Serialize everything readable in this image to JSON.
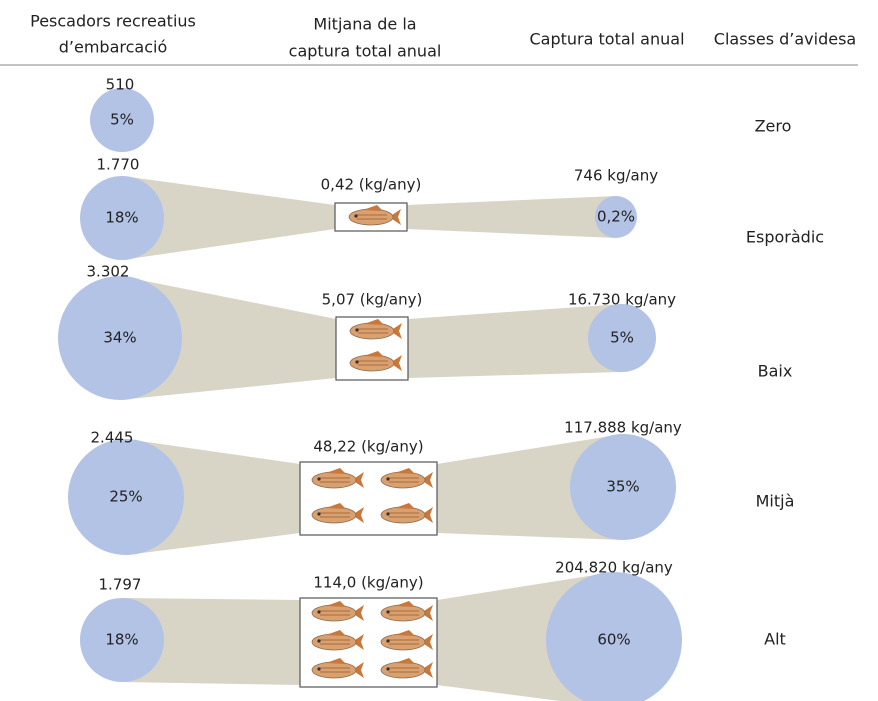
{
  "headers": [
    [
      "Pescadors recreatius",
      "d’embarcació"
    ],
    [
      "Mitjana de la",
      "captura total anual"
    ],
    [
      "Captura total anual"
    ],
    [
      "Classes d’avidesa"
    ]
  ],
  "rows": [
    {
      "count": "510",
      "share": "5%",
      "class": "Zero"
    },
    {
      "count": "1.770",
      "share": "18%",
      "mean": "0,42 (kg/any)",
      "total": "746 kg/any",
      "total_share": "0,2%",
      "class": "Esporàdic"
    },
    {
      "count": "3.302",
      "share": "34%",
      "mean": "5,07 (kg/any)",
      "total": "16.730 kg/any",
      "total_share": "5%",
      "class": "Baix"
    },
    {
      "count": "2.445",
      "share": "25%",
      "mean": "48,22 (kg/any)",
      "total": "117.888 kg/any",
      "total_share": "35%",
      "class": "Mitjà"
    },
    {
      "count": "1.797",
      "share": "18%",
      "mean": "114,0 (kg/any)",
      "total": "204.820 kg/any",
      "total_share": "60%",
      "class": "Alt"
    }
  ]
}
